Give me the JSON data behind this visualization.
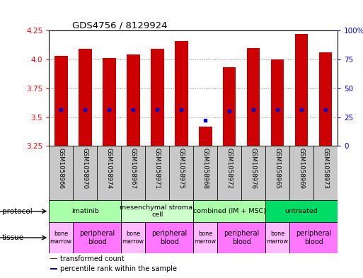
{
  "title": "GDS4756 / 8129924",
  "samples": [
    "GSM1058966",
    "GSM1058970",
    "GSM1058974",
    "GSM1058967",
    "GSM1058971",
    "GSM1058975",
    "GSM1058968",
    "GSM1058972",
    "GSM1058976",
    "GSM1058965",
    "GSM1058969",
    "GSM1058973"
  ],
  "bar_bottoms": [
    3.25,
    3.25,
    3.25,
    3.25,
    3.25,
    3.25,
    3.25,
    3.25,
    3.25,
    3.25,
    3.25,
    3.25
  ],
  "bar_tops": [
    4.03,
    4.09,
    4.01,
    4.04,
    4.09,
    4.16,
    3.42,
    3.93,
    4.1,
    4.0,
    4.22,
    4.06
  ],
  "percentile_values": [
    3.565,
    3.565,
    3.565,
    3.565,
    3.565,
    3.565,
    3.475,
    3.555,
    3.565,
    3.565,
    3.565,
    3.565
  ],
  "bar_color": "#cc0000",
  "percentile_color": "#0000cc",
  "ylim": [
    3.25,
    4.25
  ],
  "yticks_left": [
    3.25,
    3.5,
    3.75,
    4.0,
    4.25
  ],
  "yticks_right_vals": [
    0,
    25,
    50,
    75,
    100
  ],
  "ytick_labels_right": [
    "0",
    "25",
    "50",
    "75",
    "100%"
  ],
  "protocols": [
    {
      "label": "imatinib",
      "start": 0,
      "end": 3,
      "color": "#aaffaa"
    },
    {
      "label": "mesenchymal stromal\ncell",
      "start": 3,
      "end": 6,
      "color": "#ccffcc"
    },
    {
      "label": "combined (IM + MSC)",
      "start": 6,
      "end": 9,
      "color": "#aaffaa"
    },
    {
      "label": "untreated",
      "start": 9,
      "end": 12,
      "color": "#00dd66"
    }
  ],
  "tissues": [
    {
      "label": "bone\nmarrow",
      "start": 0,
      "end": 1,
      "color": "#ffbbff"
    },
    {
      "label": "peripheral\nblood",
      "start": 1,
      "end": 3,
      "color": "#ff77ff"
    },
    {
      "label": "bone\nmarrow",
      "start": 3,
      "end": 4,
      "color": "#ffbbff"
    },
    {
      "label": "peripheral\nblood",
      "start": 4,
      "end": 6,
      "color": "#ff77ff"
    },
    {
      "label": "bone\nmarrow",
      "start": 6,
      "end": 7,
      "color": "#ffbbff"
    },
    {
      "label": "peripheral\nblood",
      "start": 7,
      "end": 9,
      "color": "#ff77ff"
    },
    {
      "label": "bone\nmarrow",
      "start": 9,
      "end": 10,
      "color": "#ffbbff"
    },
    {
      "label": "peripheral\nblood",
      "start": 10,
      "end": 12,
      "color": "#ff77ff"
    }
  ],
  "legend_items": [
    {
      "label": "transformed count",
      "color": "#cc0000"
    },
    {
      "label": "percentile rank within the sample",
      "color": "#0000cc"
    }
  ],
  "bg_color": "#ffffff",
  "gray_color": "#c8c8c8"
}
